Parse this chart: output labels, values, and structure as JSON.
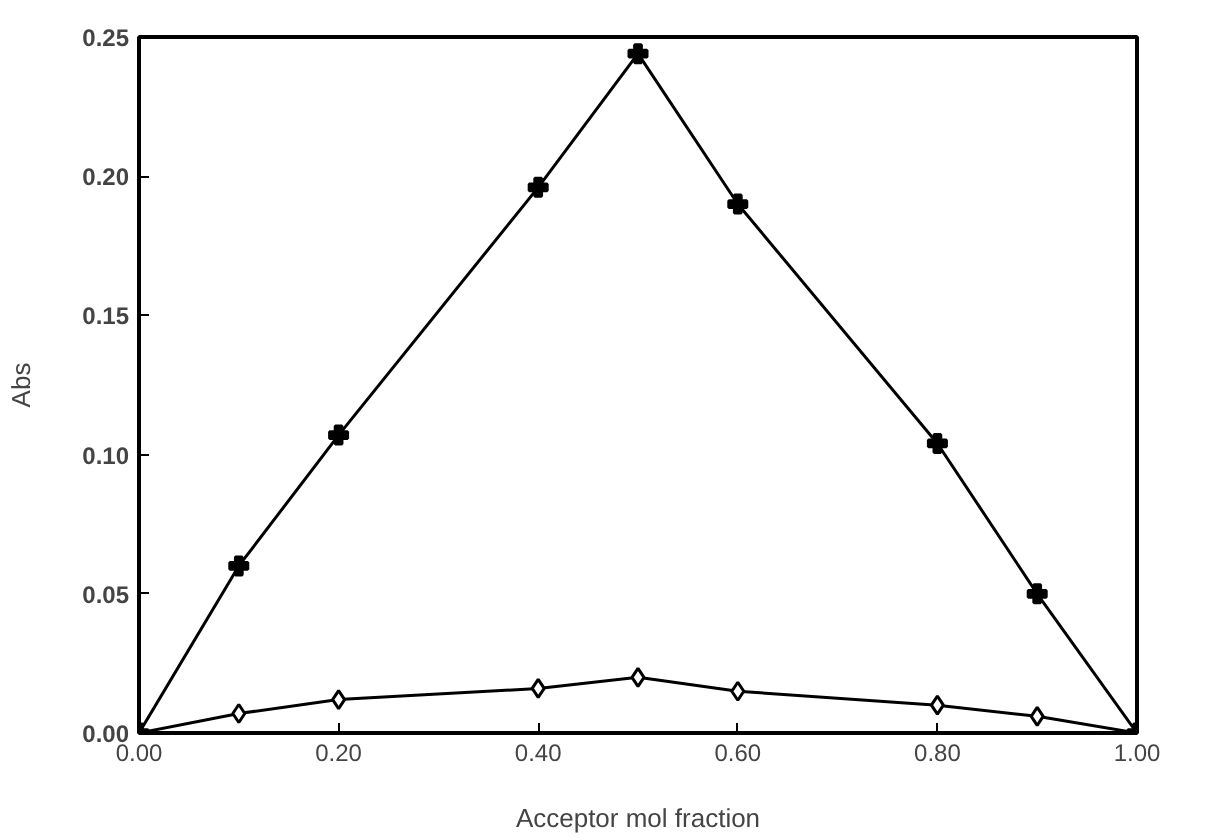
{
  "chart_data": {
    "type": "line",
    "xlabel": "Acceptor mol fraction",
    "ylabel": "Abs",
    "x": [
      0,
      0.1,
      0.2,
      0.4,
      0.5,
      0.6,
      0.8,
      0.9,
      1.0
    ],
    "series": [
      {
        "color": "#000000",
        "marker": "cross",
        "values": [
          0,
          0.06,
          0.107,
          0.196,
          0.244,
          0.19,
          0.104,
          0.05,
          0
        ]
      },
      {
        "color": "#000000",
        "marker": "diamond",
        "values": [
          0,
          0.007,
          0.012,
          0.016,
          0.02,
          0.015,
          0.01,
          0.006,
          0
        ]
      }
    ],
    "xlim": [
      0,
      1
    ],
    "ylim": [
      0,
      0.25
    ],
    "xticks": [
      {
        "value": 0,
        "label": "0.00"
      },
      {
        "value": 0.2,
        "label": "0.20"
      },
      {
        "value": 0.4,
        "label": "0.40"
      },
      {
        "value": 0.6,
        "label": "0.60"
      },
      {
        "value": 0.8,
        "label": "0.80"
      },
      {
        "value": 1,
        "label": "1.00"
      }
    ],
    "yticks": [
      {
        "value": 0,
        "label": "0.00"
      },
      {
        "value": 0.05,
        "label": "0.05"
      },
      {
        "value": 0.1,
        "label": "0.10"
      },
      {
        "value": 0.15,
        "label": "0.15"
      },
      {
        "value": 0.2,
        "label": "0.20"
      },
      {
        "value": 0.25,
        "label": "0.25"
      }
    ],
    "grid": false,
    "line_style": "solid"
  }
}
